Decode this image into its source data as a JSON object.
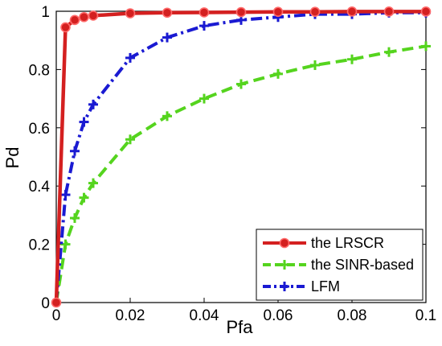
{
  "chart_data": {
    "type": "line",
    "xlabel": "Pfa",
    "ylabel": "Pd",
    "xlim": [
      0,
      0.1
    ],
    "ylim": [
      0,
      1
    ],
    "xticks": [
      0,
      0.02,
      0.04,
      0.06,
      0.08,
      0.1
    ],
    "xtick_labels": [
      "0",
      "0.02",
      "0.04",
      "0.06",
      "0.08",
      "0.1"
    ],
    "yticks": [
      0,
      0.2,
      0.4,
      0.6,
      0.8,
      1
    ],
    "ytick_labels": [
      "0",
      "0.2",
      "0.4",
      "0.6",
      "0.8",
      "1"
    ],
    "grid": false,
    "legend_position": "bottom-right",
    "series": [
      {
        "name": "the LRSCR",
        "color": "#d42020",
        "line_style": "solid",
        "marker": "circle",
        "x": [
          0,
          0.0025,
          0.005,
          0.0075,
          0.01,
          0.02,
          0.03,
          0.04,
          0.05,
          0.06,
          0.07,
          0.08,
          0.09,
          0.1
        ],
        "y": [
          0,
          0.945,
          0.97,
          0.98,
          0.985,
          0.993,
          0.995,
          0.996,
          0.997,
          0.998,
          0.998,
          0.999,
          0.999,
          0.999
        ]
      },
      {
        "name": "the SINR-based",
        "color": "#55d41e",
        "line_style": "dashed",
        "marker": "plus",
        "x": [
          0,
          0.0025,
          0.005,
          0.0075,
          0.01,
          0.02,
          0.03,
          0.04,
          0.05,
          0.06,
          0.07,
          0.08,
          0.09,
          0.1
        ],
        "y": [
          0,
          0.2,
          0.29,
          0.36,
          0.41,
          0.56,
          0.64,
          0.7,
          0.75,
          0.785,
          0.815,
          0.835,
          0.86,
          0.88
        ]
      },
      {
        "name": "LFM",
        "color": "#1a1ad2",
        "line_style": "dash-dot",
        "marker": "plus",
        "x": [
          0,
          0.0025,
          0.005,
          0.0075,
          0.01,
          0.02,
          0.03,
          0.04,
          0.05,
          0.06,
          0.07,
          0.08,
          0.09,
          0.1
        ],
        "y": [
          0,
          0.37,
          0.52,
          0.62,
          0.68,
          0.84,
          0.91,
          0.95,
          0.97,
          0.98,
          0.99,
          0.99,
          0.995,
          0.995
        ]
      }
    ]
  }
}
